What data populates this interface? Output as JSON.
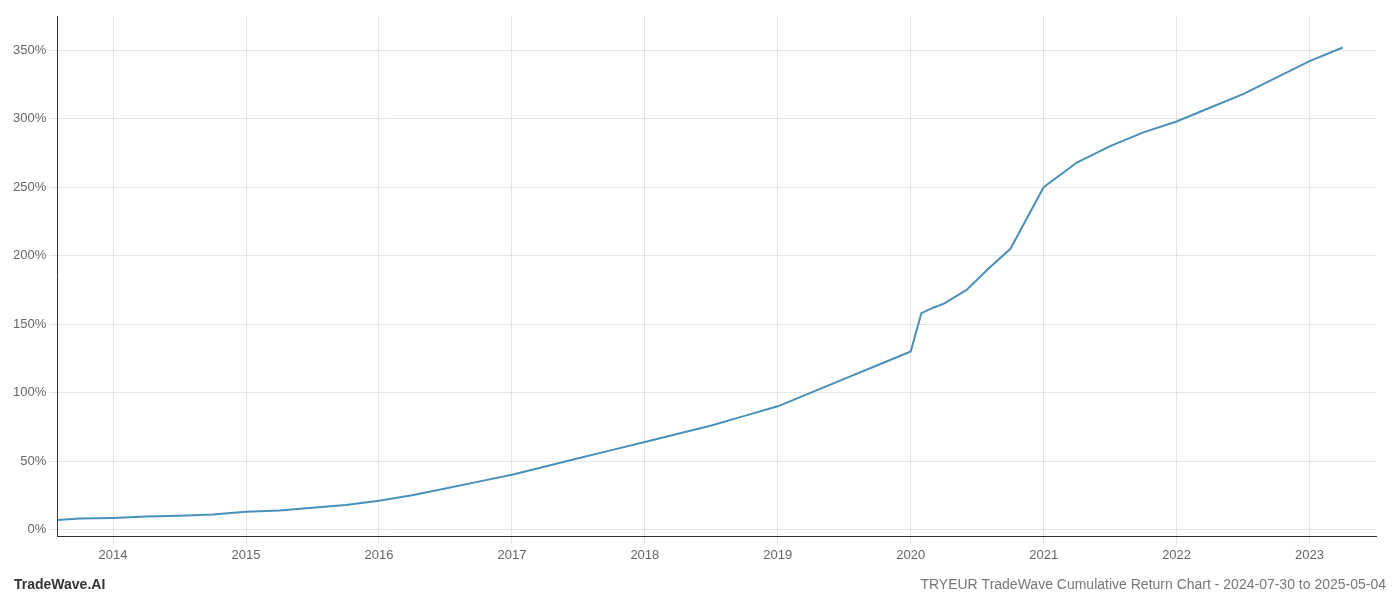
{
  "chart_data": {
    "type": "line",
    "annotations": [
      "TradeWave.AI",
      "TRYEUR TradeWave Cumulative Return Chart - 2024-07-30 to 2025-05-04"
    ],
    "x": [
      2013.58,
      2013.75,
      2014.0,
      2014.25,
      2014.5,
      2014.75,
      2015.0,
      2015.25,
      2015.5,
      2015.75,
      2016.0,
      2016.25,
      2016.5,
      2016.75,
      2017.0,
      2017.25,
      2017.5,
      2017.75,
      2018.0,
      2018.25,
      2018.5,
      2018.75,
      2019.0,
      2019.25,
      2019.5,
      2019.75,
      2020.0,
      2020.08,
      2020.17,
      2020.25,
      2020.42,
      2020.58,
      2020.75,
      2021.0,
      2021.25,
      2021.5,
      2021.75,
      2022.0,
      2022.25,
      2022.5,
      2022.75,
      2023.0,
      2023.25
    ],
    "values": [
      7,
      8,
      8.5,
      9.5,
      10,
      11,
      13,
      14,
      16,
      18,
      21,
      25,
      30,
      35,
      40,
      46,
      52,
      58,
      64,
      70,
      76,
      83,
      90,
      100,
      110,
      120,
      130,
      158,
      162,
      165,
      175,
      190,
      205,
      250,
      268,
      280,
      290,
      298,
      308,
      318,
      330,
      342,
      352
    ],
    "color": "#4a90b8",
    "xlim": [
      2013.58,
      2023.5
    ],
    "ylim": [
      -5,
      375
    ],
    "xticks": [
      2014,
      2015,
      2016,
      2017,
      2018,
      2019,
      2020,
      2021,
      2022,
      2023
    ],
    "yticks": [
      {
        "value": 0,
        "label": "0%"
      },
      {
        "value": 50,
        "label": "50%"
      },
      {
        "value": 100,
        "label": "100%"
      },
      {
        "value": 150,
        "label": "150%"
      },
      {
        "value": 200,
        "label": "200%"
      },
      {
        "value": 250,
        "label": "250%"
      },
      {
        "value": 300,
        "label": "300%"
      },
      {
        "value": 350,
        "label": "350%"
      }
    ],
    "grid": true
  }
}
